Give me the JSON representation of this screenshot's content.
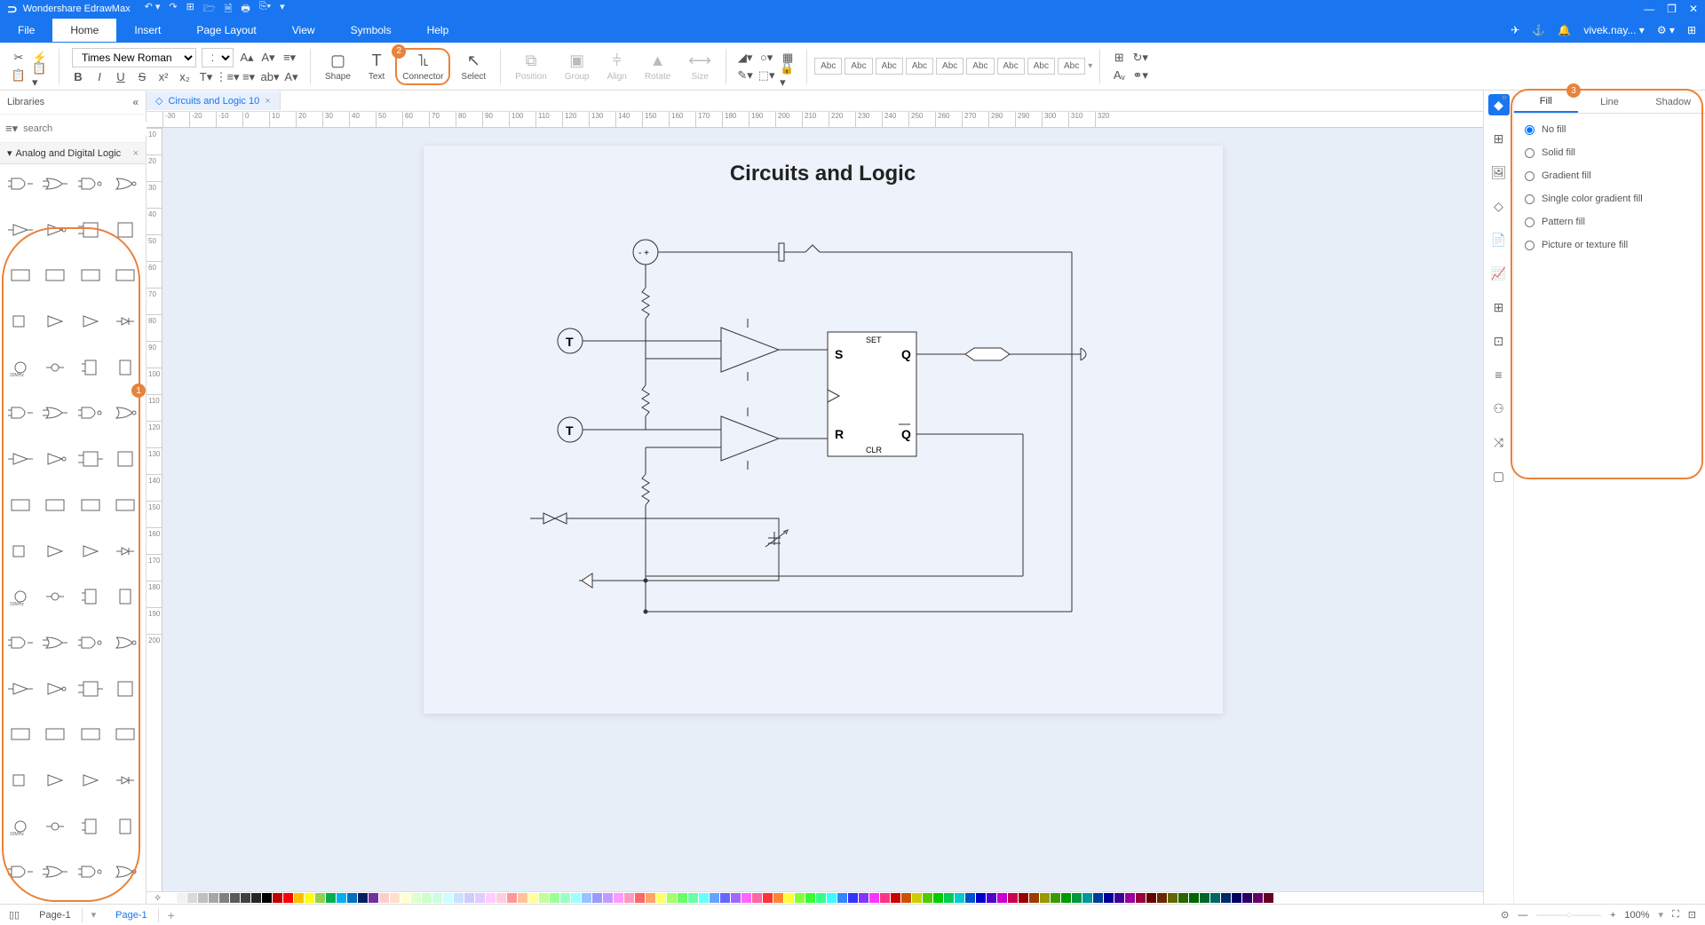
{
  "app": {
    "name": "Wondershare EdrawMax",
    "logo": "⊃"
  },
  "quickAccess": [
    "↶ ▾",
    "↷",
    "⊞",
    "🗁",
    "🗎",
    "🖶",
    "⎘▾",
    "▾"
  ],
  "windowControls": [
    "—",
    "❐",
    "✕"
  ],
  "menu": {
    "items": [
      "File",
      "Home",
      "Insert",
      "Page Layout",
      "View",
      "Symbols",
      "Help"
    ],
    "active": "Home",
    "rightItems": [
      "✈",
      "⚓",
      "🔔",
      "vivek.nay... ▾",
      "⚙ ▾",
      "⊞"
    ]
  },
  "ribbon": {
    "clipboard": [
      "✂",
      "⚡",
      "📋",
      "📋▾"
    ],
    "font": {
      "name": "Times New Roman",
      "size": "12",
      "buttons1": [
        "A▴",
        "A▾",
        "≡▾"
      ],
      "buttons2": [
        "B",
        "I",
        "U",
        "S",
        "x²",
        "x₂",
        "T▾",
        "⋮≡▾",
        "≡▾",
        "ab▾",
        "A▾"
      ]
    },
    "tools": [
      {
        "icon": "▢",
        "label": "Shape"
      },
      {
        "icon": "T",
        "label": "Text"
      },
      {
        "icon": "˥˪",
        "label": "Connector",
        "highlighted": true,
        "badge": "2"
      },
      {
        "icon": "↖",
        "label": "Select"
      }
    ],
    "arrange": [
      {
        "icon": "⧉",
        "label": "Position",
        "disabled": true
      },
      {
        "icon": "▣",
        "label": "Group",
        "disabled": true
      },
      {
        "icon": "⫩",
        "label": "Align",
        "disabled": true
      },
      {
        "icon": "▲",
        "label": "Rotate",
        "disabled": true
      },
      {
        "icon": "⟷",
        "label": "Size",
        "disabled": true
      }
    ],
    "style": [
      "◢▾",
      "○▾",
      "▦",
      "✎▾",
      "⬚▾",
      "🔒▾"
    ],
    "abc": [
      "Abc",
      "Abc",
      "Abc",
      "Abc",
      "Abc",
      "Abc",
      "Abc",
      "Abc",
      "Abc"
    ],
    "rightButtons": [
      "⊞",
      "↻▾",
      "Aᵥ",
      "⚭▾"
    ]
  },
  "sidebar": {
    "title": "Libraries",
    "searchPlaceholder": "search",
    "category": "Analog and Digital Logic"
  },
  "document": {
    "tabName": "Circuits and Logic 10",
    "pageTitle": "Circuits and Logic"
  },
  "rulerH": [
    "-30",
    "-20",
    "-10",
    "0",
    "10",
    "20",
    "30",
    "40",
    "50",
    "60",
    "70",
    "80",
    "90",
    "100",
    "110",
    "120",
    "130",
    "140",
    "150",
    "160",
    "170",
    "180",
    "190",
    "200",
    "210",
    "220",
    "230",
    "240",
    "250",
    "260",
    "270",
    "280",
    "290",
    "300",
    "310",
    "320"
  ],
  "rulerV": [
    "10",
    "20",
    "30",
    "40",
    "50",
    "60",
    "70",
    "80",
    "90",
    "100",
    "110",
    "120",
    "130",
    "140",
    "150",
    "160",
    "170",
    "180",
    "190",
    "200"
  ],
  "circuit": {
    "flipflop": {
      "s": "S",
      "q": "Q",
      "r": "R",
      "qbar": "Q",
      "set": "SET",
      "clr": "CLR"
    },
    "terminals": [
      "T",
      "T"
    ]
  },
  "colorBar": {
    "colors": [
      "#ffffff",
      "#f2f2f2",
      "#d9d9d9",
      "#bfbfbf",
      "#a6a6a6",
      "#808080",
      "#595959",
      "#404040",
      "#262626",
      "#000000",
      "#c00000",
      "#ff0000",
      "#ffc000",
      "#ffff00",
      "#92d050",
      "#00b050",
      "#00b0f0",
      "#0070c0",
      "#002060",
      "#7030a0",
      "#ffcccc",
      "#ffe0cc",
      "#ffffcc",
      "#e0ffcc",
      "#ccffcc",
      "#ccffe0",
      "#ccffff",
      "#cce0ff",
      "#ccccff",
      "#e0ccff",
      "#ffccff",
      "#ffcce0",
      "#ff9999",
      "#ffc299",
      "#ffff99",
      "#c2ff99",
      "#99ff99",
      "#99ffc2",
      "#99ffff",
      "#99c2ff",
      "#9999ff",
      "#c299ff",
      "#ff99ff",
      "#ff99c2",
      "#ff6666",
      "#ffa366",
      "#ffff66",
      "#a3ff66",
      "#66ff66",
      "#66ffa3",
      "#66ffff",
      "#66a3ff",
      "#6666ff",
      "#a366ff",
      "#ff66ff",
      "#ff66a3",
      "#ff3333",
      "#ff8533",
      "#ffff33",
      "#85ff33",
      "#33ff33",
      "#33ff85",
      "#33ffff",
      "#3385ff",
      "#3333ff",
      "#8533ff",
      "#ff33ff",
      "#ff3385",
      "#cc0000",
      "#cc5200",
      "#cccc00",
      "#52cc00",
      "#00cc00",
      "#00cc52",
      "#00cccc",
      "#0052cc",
      "#0000cc",
      "#5200cc",
      "#cc00cc",
      "#cc0052",
      "#990000",
      "#993d00",
      "#999900",
      "#3d9900",
      "#009900",
      "#00993d",
      "#009999",
      "#003d99",
      "#000099",
      "#3d0099",
      "#990099",
      "#99003d",
      "#660000",
      "#662900",
      "#666600",
      "#296600",
      "#006600",
      "#006629",
      "#006666",
      "#002966",
      "#000066",
      "#290066",
      "#660066",
      "#660029"
    ]
  },
  "statusBar": {
    "page1": "Page-1",
    "page2": "Page-1",
    "zoom": "100%"
  },
  "rightPanel": {
    "tabs": [
      "Fill",
      "Line",
      "Shadow"
    ],
    "activeTab": "Fill",
    "options": [
      "No fill",
      "Solid fill",
      "Gradient fill",
      "Single color gradient fill",
      "Pattern fill",
      "Picture or texture fill"
    ]
  },
  "rightIconCol": [
    "◆",
    "⊞",
    "🖼",
    "◇",
    "📄",
    "📈",
    "⊞",
    "⊡",
    "≡",
    "⚇",
    "⤨",
    "▢"
  ]
}
